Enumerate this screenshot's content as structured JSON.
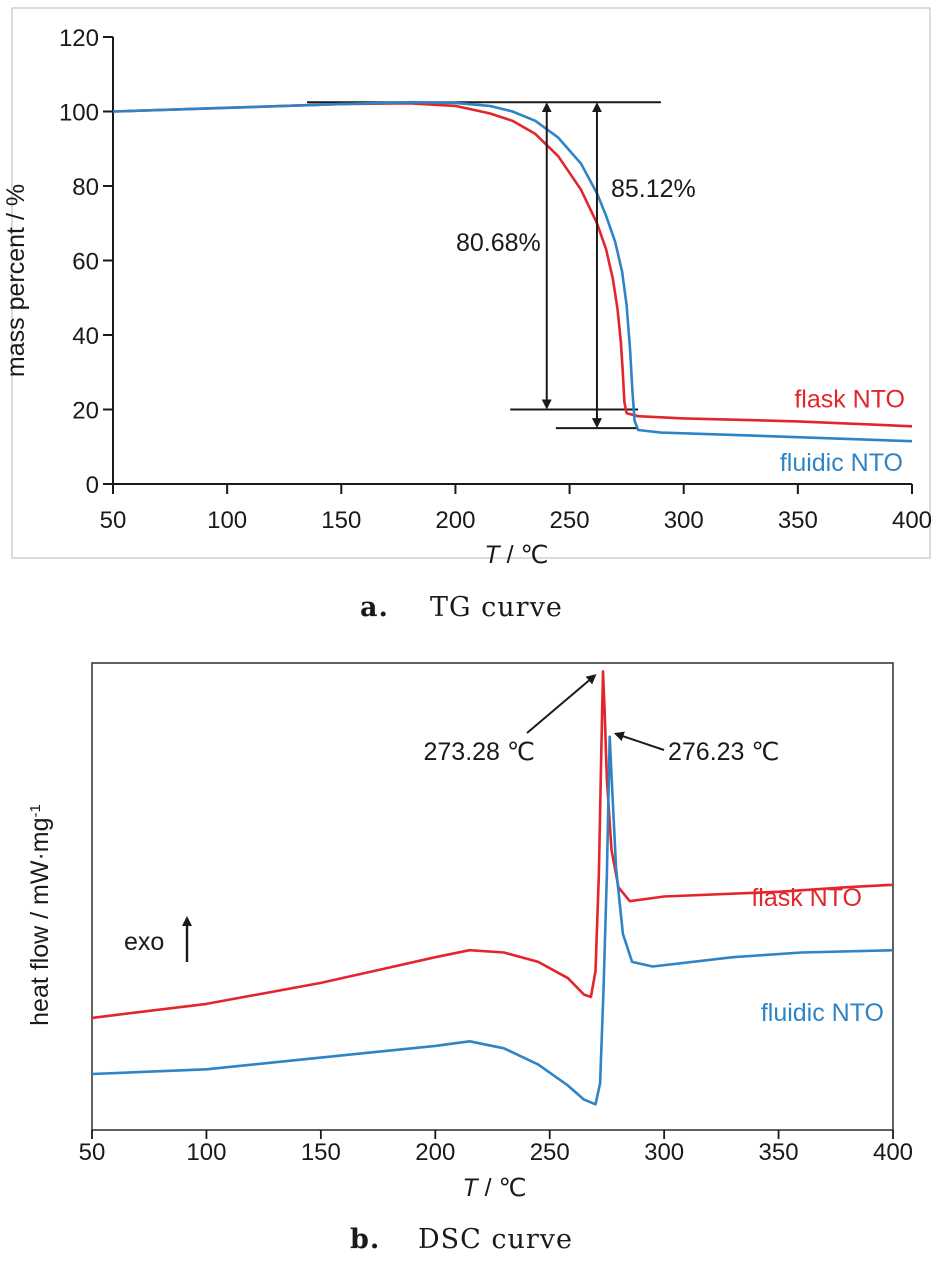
{
  "colors": {
    "flask": "#e3262b",
    "fluidic": "#2f84c6",
    "axis": "#1a1a1a",
    "frame": "#cfcfcf"
  },
  "chart_data": [
    {
      "type": "line",
      "xlabel": {
        "var": "T",
        "unit": "/ ℃"
      },
      "ylabel": "mass percent / %",
      "xlim": [
        50,
        400
      ],
      "ylim": [
        0,
        120
      ],
      "xticks": [
        50,
        100,
        150,
        200,
        250,
        300,
        350,
        400
      ],
      "yticks": [
        0,
        20,
        40,
        60,
        80,
        100,
        120
      ],
      "caption": {
        "letter": "a.",
        "text": "TG curve"
      },
      "series": [
        {
          "name": "flask NTO",
          "color": "#e3262b",
          "points": [
            [
              50,
              100
            ],
            [
              100,
              101
            ],
            [
              150,
              102
            ],
            [
              180,
              102.2
            ],
            [
              200,
              101.5
            ],
            [
              215,
              99.5
            ],
            [
              225,
              97.5
            ],
            [
              235,
              94
            ],
            [
              245,
              88
            ],
            [
              255,
              79
            ],
            [
              262,
              70
            ],
            [
              266,
              63
            ],
            [
              269,
              55
            ],
            [
              271,
              47
            ],
            [
              272.5,
              38
            ],
            [
              273.3,
              30
            ],
            [
              274,
              22
            ],
            [
              275,
              19
            ],
            [
              280,
              18.2
            ],
            [
              300,
              17.6
            ],
            [
              350,
              16.8
            ],
            [
              400,
              15.5
            ]
          ]
        },
        {
          "name": "fluidic NTO",
          "color": "#2f84c6",
          "points": [
            [
              50,
              100
            ],
            [
              100,
              101
            ],
            [
              150,
              102
            ],
            [
              180,
              102.5
            ],
            [
              200,
              102.3
            ],
            [
              215,
              101.5
            ],
            [
              225,
              100
            ],
            [
              235,
              97.5
            ],
            [
              245,
              93
            ],
            [
              255,
              86
            ],
            [
              262,
              78
            ],
            [
              266,
              72
            ],
            [
              270,
              65
            ],
            [
              273,
              57
            ],
            [
              275,
              48
            ],
            [
              276.5,
              36
            ],
            [
              277.5,
              25
            ],
            [
              278.5,
              17
            ],
            [
              280,
              14.5
            ],
            [
              290,
              13.8
            ],
            [
              330,
              13
            ],
            [
              400,
              11.5
            ]
          ]
        }
      ],
      "annotations": [
        {
          "text": "80.68%",
          "x": 240,
          "top": 102.5,
          "bottom": 20
        },
        {
          "text": "85.12%",
          "x": 262,
          "top": 102.5,
          "bottom": 15
        }
      ],
      "ref_lines": [
        {
          "y": 102.5,
          "x1": 135,
          "x2": 290
        },
        {
          "y": 20,
          "x1": 224,
          "x2": 280
        },
        {
          "y": 15,
          "x1": 244,
          "x2": 280
        }
      ]
    },
    {
      "type": "line",
      "xlabel": {
        "var": "T",
        "unit": "/ ℃"
      },
      "ylabel": "heat flow / mW·mg",
      "ylabel_sup": "-1",
      "xlim": [
        50,
        400
      ],
      "ylim": [
        0,
        1
      ],
      "xticks": [
        50,
        100,
        150,
        200,
        250,
        300,
        350,
        400
      ],
      "caption": {
        "letter": "b.",
        "text": "DSC curve"
      },
      "exo_label": "exo",
      "series": [
        {
          "name": "flask NTO",
          "color": "#e3262b",
          "points": [
            [
              50,
              0.24
            ],
            [
              100,
              0.27
            ],
            [
              150,
              0.315
            ],
            [
              200,
              0.37
            ],
            [
              215,
              0.385
            ],
            [
              230,
              0.38
            ],
            [
              245,
              0.36
            ],
            [
              258,
              0.325
            ],
            [
              265,
              0.29
            ],
            [
              268,
              0.285
            ],
            [
              270,
              0.34
            ],
            [
              271.5,
              0.55
            ],
            [
              272.5,
              0.8
            ],
            [
              273.28,
              0.982
            ],
            [
              274,
              0.9
            ],
            [
              275,
              0.75
            ],
            [
              277,
              0.6
            ],
            [
              280,
              0.52
            ],
            [
              285,
              0.49
            ],
            [
              300,
              0.5
            ],
            [
              350,
              0.51
            ],
            [
              380,
              0.52
            ],
            [
              400,
              0.525
            ]
          ]
        },
        {
          "name": "fluidic NTO",
          "color": "#2f84c6",
          "points": [
            [
              50,
              0.12
            ],
            [
              100,
              0.13
            ],
            [
              150,
              0.155
            ],
            [
              200,
              0.18
            ],
            [
              215,
              0.19
            ],
            [
              230,
              0.175
            ],
            [
              245,
              0.14
            ],
            [
              258,
              0.095
            ],
            [
              265,
              0.065
            ],
            [
              270,
              0.055
            ],
            [
              272,
              0.1
            ],
            [
              273.5,
              0.3
            ],
            [
              275,
              0.55
            ],
            [
              276.23,
              0.842
            ],
            [
              277,
              0.76
            ],
            [
              279,
              0.56
            ],
            [
              282,
              0.42
            ],
            [
              286,
              0.36
            ],
            [
              295,
              0.35
            ],
            [
              330,
              0.37
            ],
            [
              360,
              0.38
            ],
            [
              400,
              0.385
            ]
          ]
        }
      ],
      "annotations": [
        {
          "text": "273.28 ℃",
          "x": 273.28,
          "y": 0.982
        },
        {
          "text": "276.23 ℃",
          "x": 276.23,
          "y": 0.842
        }
      ]
    }
  ]
}
